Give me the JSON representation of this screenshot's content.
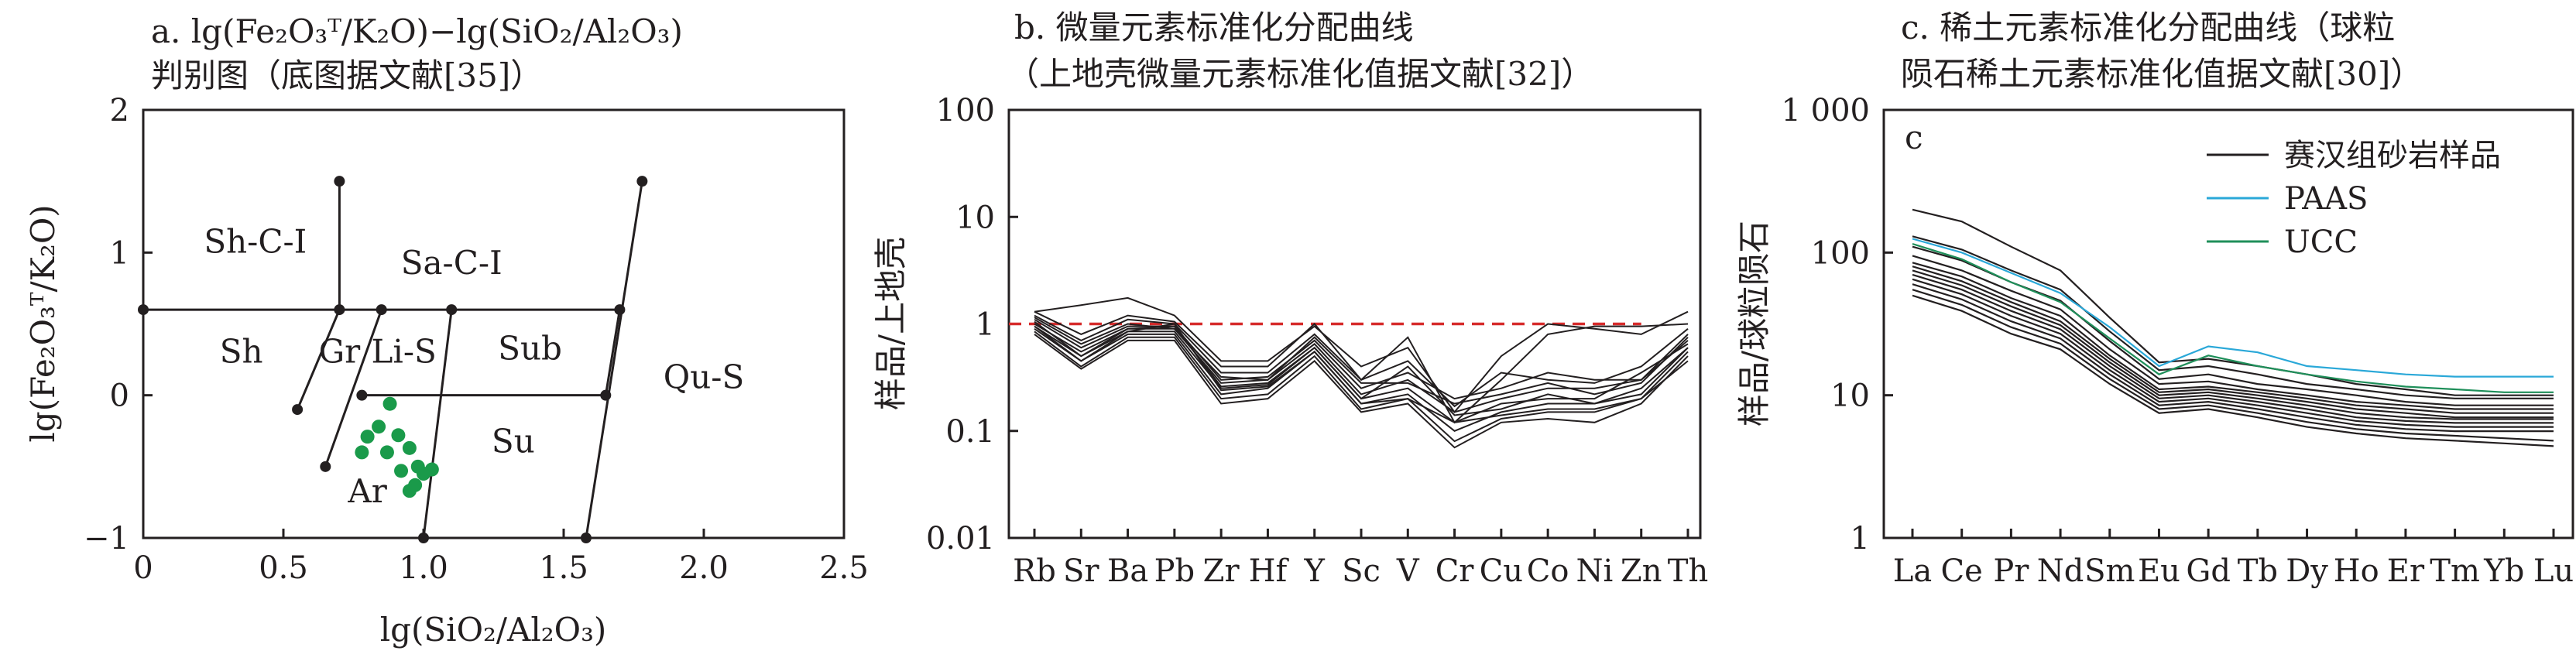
{
  "chart_data": [
    {
      "id": "a",
      "type": "scatter",
      "title_lines": [
        "a. lg(Fe₂O₃ᵀ/K₂O)−lg(SiO₂/Al₂O₃)",
        "判别图（底图据文献[35]）"
      ],
      "xlabel": "lg(SiO₂/Al₂O₃)",
      "ylabel": "lg(Fe₂O₃ᵀ/K₂O)",
      "xlim": [
        0,
        2.5
      ],
      "ylim": [
        -1,
        2
      ],
      "x_ticks": [
        "0",
        "0.5",
        "1.0",
        "1.5",
        "2.0",
        "2.5"
      ],
      "y_ticks": [
        "−1",
        "0",
        "1",
        "2"
      ],
      "boundaries": [
        [
          [
            0,
            0.6
          ],
          [
            1.7,
            0.6
          ]
        ],
        [
          [
            0.7,
            1.5
          ],
          [
            0.7,
            0.6
          ]
        ],
        [
          [
            0.7,
            0.6
          ],
          [
            0.55,
            -0.1
          ]
        ],
        [
          [
            0.85,
            0.6
          ],
          [
            0.65,
            -0.5
          ]
        ],
        [
          [
            0.78,
            0
          ],
          [
            1.65,
            0
          ]
        ],
        [
          [
            1.1,
            0.6
          ],
          [
            1.0,
            -1.0
          ]
        ],
        [
          [
            1.78,
            1.5
          ],
          [
            1.58,
            -1.0
          ]
        ],
        [
          [
            1.7,
            0.6
          ],
          [
            1.65,
            0
          ]
        ]
      ],
      "region_labels": [
        {
          "text": "Sh-C-I",
          "x": 0.4,
          "y": 1.0
        },
        {
          "text": "Sa-C-I",
          "x": 1.1,
          "y": 0.85
        },
        {
          "text": "Sh",
          "x": 0.35,
          "y": 0.23
        },
        {
          "text": "Gr",
          "x": 0.7,
          "y": 0.23
        },
        {
          "text": "Li-S",
          "x": 0.93,
          "y": 0.23
        },
        {
          "text": "Sub",
          "x": 1.38,
          "y": 0.25
        },
        {
          "text": "Qu-S",
          "x": 2.0,
          "y": 0.05
        },
        {
          "text": "Su",
          "x": 1.32,
          "y": -0.4
        },
        {
          "text": "Ar",
          "x": 0.8,
          "y": -0.75
        }
      ],
      "points": [
        [
          0.88,
          -0.06
        ],
        [
          0.84,
          -0.22
        ],
        [
          0.8,
          -0.29
        ],
        [
          0.91,
          -0.28
        ],
        [
          0.78,
          -0.4
        ],
        [
          0.87,
          -0.4
        ],
        [
          0.95,
          -0.37
        ],
        [
          0.98,
          -0.5
        ],
        [
          0.92,
          -0.53
        ],
        [
          1.0,
          -0.55
        ],
        [
          1.03,
          -0.52
        ],
        [
          0.97,
          -0.63
        ],
        [
          0.95,
          -0.67
        ]
      ],
      "point_color": "#1a9a4a"
    },
    {
      "id": "b",
      "type": "line",
      "title_lines": [
        "b. 微量元素标准化分配曲线",
        "（上地壳微量元素标准化值据文献[32]）"
      ],
      "ylabel": "样品/上地壳",
      "yscale": "log",
      "ylim": [
        0.01,
        100
      ],
      "y_ticks": [
        "0.01",
        "0.1",
        "1",
        "10",
        "100"
      ],
      "categories": [
        "Rb",
        "Sr",
        "Ba",
        "Pb",
        "Zr",
        "Hf",
        "Y",
        "Sc",
        "V",
        "Cr",
        "Cu",
        "Co",
        "Ni",
        "Zn",
        "Th"
      ],
      "reference_line": {
        "value": 1,
        "color": "#d62b2b",
        "style": "dashed"
      },
      "series": [
        {
          "values": [
            1.3,
            1.5,
            1.75,
            1.2,
            0.45,
            0.45,
            0.95,
            0.4,
            0.6,
            0.15,
            0.5,
            1.0,
            0.9,
            0.8,
            1.3
          ]
        },
        {
          "values": [
            1.2,
            0.7,
            1.1,
            1.0,
            0.35,
            0.35,
            0.8,
            0.3,
            0.75,
            0.12,
            0.3,
            0.8,
            0.95,
            0.95,
            1.0
          ]
        },
        {
          "values": [
            1.1,
            0.6,
            0.95,
            0.95,
            0.3,
            0.32,
            0.7,
            0.25,
            0.35,
            0.2,
            0.25,
            0.35,
            0.3,
            0.3,
            0.8
          ]
        },
        {
          "values": [
            1.0,
            0.55,
            0.9,
            0.9,
            0.28,
            0.3,
            0.65,
            0.22,
            0.3,
            0.15,
            0.2,
            0.25,
            0.25,
            0.3,
            0.7
          ]
        },
        {
          "values": [
            0.95,
            0.5,
            0.85,
            0.85,
            0.25,
            0.27,
            0.6,
            0.2,
            0.25,
            0.12,
            0.18,
            0.2,
            0.2,
            0.35,
            0.65
          ]
        },
        {
          "values": [
            0.9,
            0.45,
            0.8,
            0.8,
            0.22,
            0.25,
            0.55,
            0.18,
            0.22,
            0.1,
            0.15,
            0.18,
            0.18,
            0.25,
            0.6
          ]
        },
        {
          "values": [
            0.85,
            0.4,
            0.75,
            0.75,
            0.2,
            0.22,
            0.5,
            0.16,
            0.2,
            0.08,
            0.13,
            0.15,
            0.15,
            0.2,
            0.55
          ]
        },
        {
          "values": [
            0.8,
            0.38,
            0.7,
            0.7,
            0.18,
            0.2,
            0.45,
            0.15,
            0.18,
            0.07,
            0.12,
            0.13,
            0.12,
            0.18,
            0.5
          ]
        },
        {
          "values": [
            1.15,
            0.65,
            1.0,
            0.9,
            0.32,
            0.3,
            0.75,
            0.28,
            0.28,
            0.18,
            0.22,
            0.28,
            0.22,
            0.28,
            0.75
          ]
        },
        {
          "values": [
            1.05,
            0.5,
            0.9,
            0.95,
            0.26,
            0.28,
            0.6,
            0.2,
            0.4,
            0.14,
            0.16,
            0.22,
            0.18,
            0.22,
            0.6
          ]
        },
        {
          "values": [
            0.95,
            0.45,
            0.85,
            1.0,
            0.24,
            0.26,
            0.55,
            0.18,
            0.2,
            0.12,
            0.14,
            0.16,
            0.16,
            0.2,
            0.45
          ]
        },
        {
          "values": [
            1.3,
            0.8,
            1.2,
            1.05,
            0.4,
            0.4,
            1.0,
            0.3,
            0.45,
            0.17,
            0.35,
            0.3,
            0.28,
            0.4,
            0.9
          ]
        }
      ]
    },
    {
      "id": "c",
      "type": "line",
      "title_lines": [
        "c. 稀土元素标准化分配曲线（球粒",
        "陨石稀土元素标准化值据文献[30]）"
      ],
      "panel_letter": "c",
      "ylabel": "样品/球粒陨石",
      "yscale": "log",
      "ylim": [
        1,
        1000
      ],
      "y_ticks": [
        "1",
        "10",
        "100",
        "1 000"
      ],
      "categories": [
        "La",
        "Ce",
        "Pr",
        "Nd",
        "Sm",
        "Eu",
        "Gd",
        "Tb",
        "Dy",
        "Ho",
        "Er",
        "Tm",
        "Yb",
        "Lu"
      ],
      "legend": [
        {
          "name": "赛汉组砂岩样品",
          "color": "#231f20"
        },
        {
          "name": "PAAS",
          "color": "#2aa8d8"
        },
        {
          "name": "UCC",
          "color": "#1f8f5a"
        }
      ],
      "series": [
        {
          "group": "sample",
          "values": [
            200,
            165,
            110,
            75,
            35,
            17,
            18,
            16,
            14,
            12,
            11,
            10,
            10,
            10
          ]
        },
        {
          "group": "sample",
          "values": [
            130,
            105,
            75,
            55,
            28,
            15,
            16,
            14,
            12,
            11,
            10,
            9.5,
            9.5,
            9.5
          ]
        },
        {
          "group": "sample",
          "values": [
            110,
            88,
            62,
            46,
            24,
            13,
            14,
            12,
            11,
            10,
            9,
            8.5,
            8.5,
            8.5
          ]
        },
        {
          "group": "sample",
          "values": [
            95,
            75,
            54,
            40,
            21,
            12,
            12.5,
            11,
            10,
            9,
            8.5,
            8,
            8,
            8
          ]
        },
        {
          "group": "sample",
          "values": [
            85,
            68,
            48,
            36,
            19,
            11,
            11.5,
            10.5,
            9.5,
            8.5,
            8,
            7.5,
            7.5,
            7.5
          ]
        },
        {
          "group": "sample",
          "values": [
            80,
            63,
            45,
            33,
            18,
            10.5,
            11,
            10,
            9,
            8,
            7.5,
            7,
            7,
            7
          ]
        },
        {
          "group": "sample",
          "values": [
            75,
            59,
            42,
            31,
            17,
            10,
            10.5,
            9.5,
            8.5,
            7.5,
            7,
            6.8,
            6.8,
            6.8
          ]
        },
        {
          "group": "sample",
          "values": [
            70,
            55,
            39,
            29,
            16,
            9.5,
            10,
            9,
            8,
            7,
            6.6,
            6.4,
            6.4,
            6.4
          ]
        },
        {
          "group": "sample",
          "values": [
            65,
            51,
            36,
            27,
            15,
            9,
            9.5,
            8.5,
            7.5,
            6.6,
            6.2,
            6,
            6,
            6
          ]
        },
        {
          "group": "sample",
          "values": [
            60,
            47,
            33,
            25,
            14,
            8.5,
            9,
            8,
            7,
            6.2,
            5.8,
            5.6,
            5.6,
            5.6
          ]
        },
        {
          "group": "sample",
          "values": [
            55,
            43,
            30,
            23,
            13,
            8,
            8.5,
            7.5,
            6.5,
            5.8,
            5.4,
            5.2,
            5,
            4.8
          ]
        },
        {
          "group": "sample",
          "values": [
            50,
            39,
            27,
            21,
            12,
            7.5,
            8,
            7,
            6,
            5.4,
            5,
            4.8,
            4.6,
            4.4
          ]
        },
        {
          "group": "PAAS",
          "values": [
            125,
            100,
            72,
            52,
            30,
            16,
            22,
            20,
            16,
            15,
            14,
            13.5,
            13.5,
            13.5
          ]
        },
        {
          "group": "UCC",
          "values": [
            115,
            90,
            62,
            45,
            25,
            14,
            19,
            16,
            14,
            12.5,
            11.5,
            11,
            10.5,
            10.5
          ]
        }
      ]
    }
  ]
}
